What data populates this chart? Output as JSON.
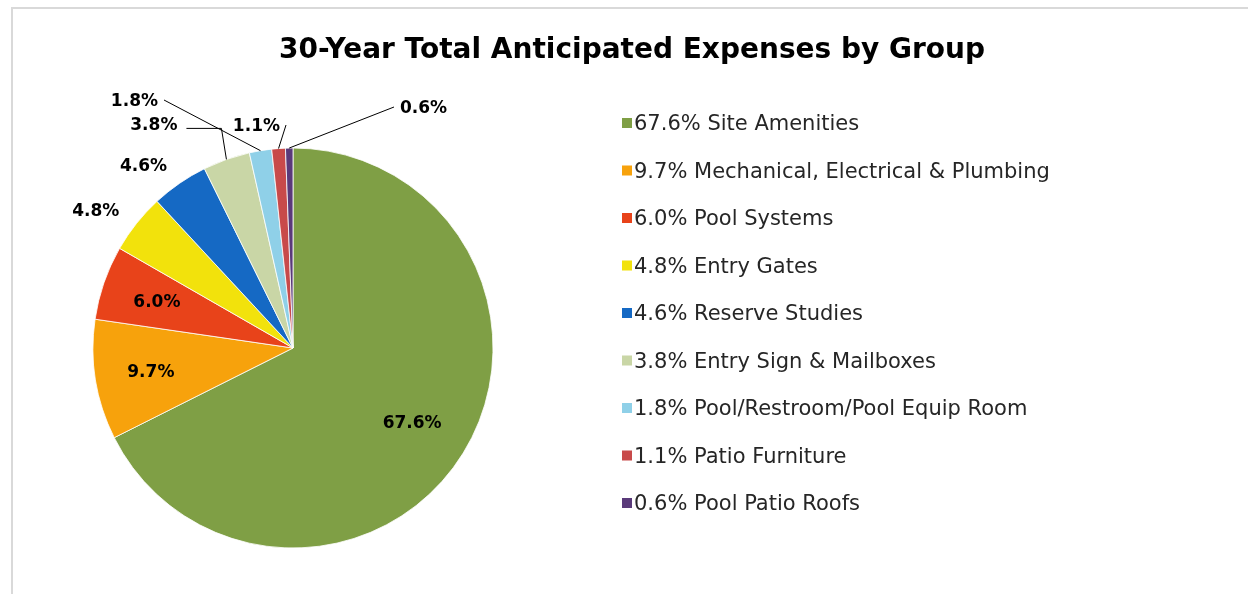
{
  "chart_data": {
    "type": "pie",
    "title": "30-Year Total Anticipated Expenses by Group",
    "categories": [
      "67.6% Site Amenities",
      "9.7% Mechanical, Electrical & Plumbing",
      "6.0% Pool Systems",
      "4.8% Entry Gates",
      "4.6% Reserve Studies",
      "3.8% Entry Sign & Mailboxes",
      "1.8% Pool/Restroom/Pool Equip Room",
      "1.1% Patio Furniture",
      "0.6% Pool Patio Roofs"
    ],
    "values": [
      67.6,
      9.7,
      6.0,
      4.8,
      4.6,
      3.8,
      1.8,
      1.1,
      0.6
    ],
    "colors": [
      "#7f9f45",
      "#f7a20c",
      "#e8431a",
      "#f2e20c",
      "#1569c4",
      "#c9d6a6",
      "#8fd0e8",
      "#c84a4a",
      "#5a3a7a"
    ],
    "value_labels": [
      "67.6%",
      "9.7%",
      "6.0%",
      "4.8%",
      "4.6%",
      "3.8%",
      "1.8%",
      "1.1%",
      "0.6%"
    ],
    "legend": "right"
  }
}
